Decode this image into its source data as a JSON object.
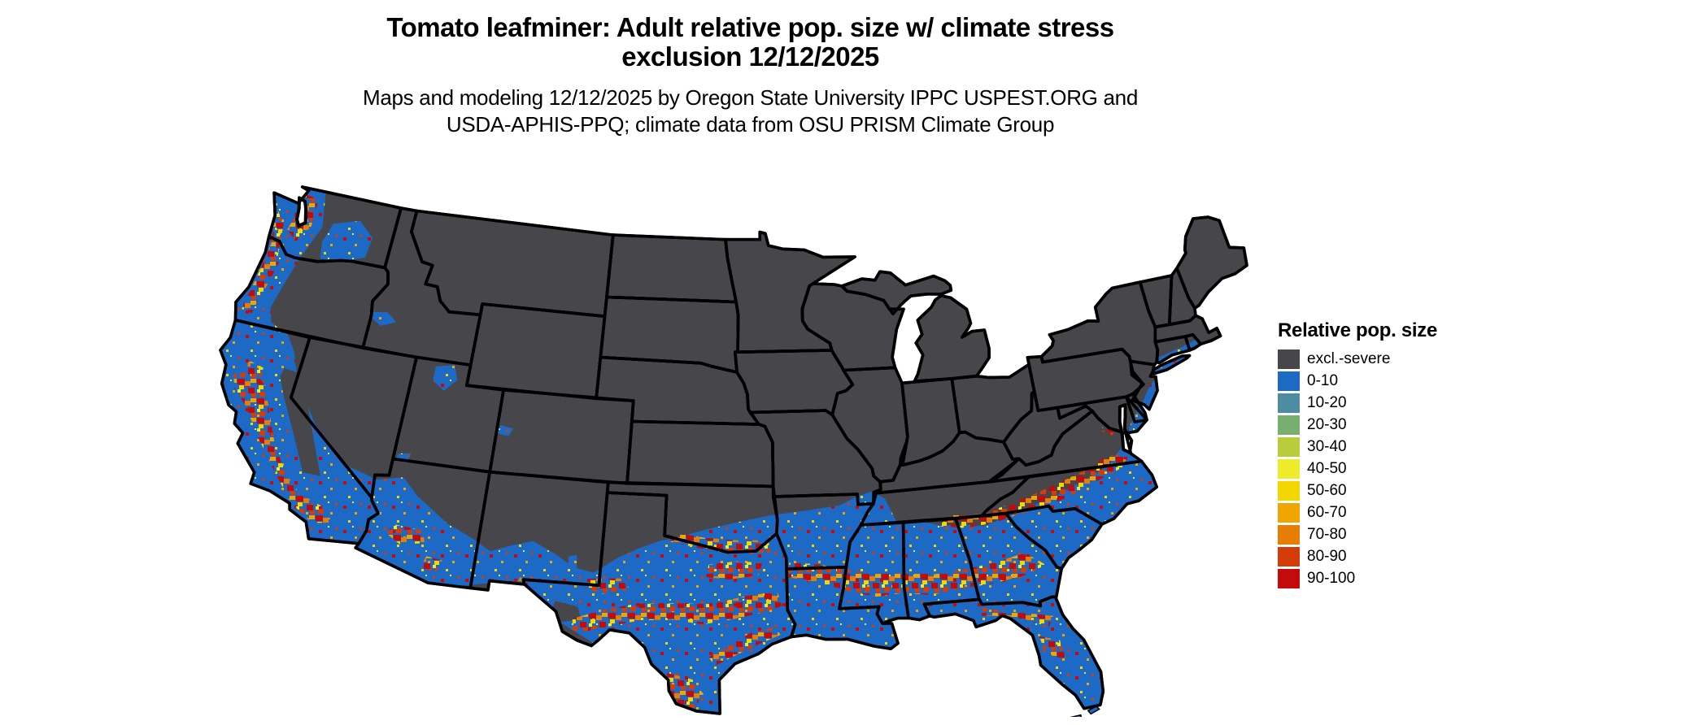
{
  "header": {
    "title_line1": "Tomato leafminer: Adult relative pop. size w/ climate stress",
    "title_line2": "exclusion 12/12/2025",
    "subtitle_line1": "Maps and modeling 12/12/2025 by Oregon State University IPPC USPEST.ORG and",
    "subtitle_line2": "USDA-APHIS-PPQ; climate data from OSU PRISM Climate Group"
  },
  "legend": {
    "title": "Relative pop. size",
    "items": [
      {
        "label": "excl.-severe",
        "color": "#47474B"
      },
      {
        "label": "0-10",
        "color": "#1C69C6"
      },
      {
        "label": "10-20",
        "color": "#4E8CA1"
      },
      {
        "label": "20-30",
        "color": "#78AF6E"
      },
      {
        "label": "30-40",
        "color": "#B9CD3C"
      },
      {
        "label": "40-50",
        "color": "#EEEB28"
      },
      {
        "label": "50-60",
        "color": "#F5D700"
      },
      {
        "label": "60-70",
        "color": "#F0A500"
      },
      {
        "label": "70-80",
        "color": "#E67D05"
      },
      {
        "label": "80-90",
        "color": "#D53C0A"
      },
      {
        "label": "90-100",
        "color": "#C40A0A"
      }
    ]
  },
  "map": {
    "state_border_color": "#000000",
    "water_background_color": "#FFFFFF",
    "zones": {
      "excluded": "excl.-severe (dark gray): northern tier, Midwest, Appalachians and interior mountain West",
      "suitable_low": "0-10 (blue): southern U.S. from southeast Virginia through the Gulf states and Texas, plus Pacific coast valleys, southwest deserts, Columbia Basin and Great Salt Lake area",
      "hotspots": "40-100 (yellow to red): speckled bands across south Texas, central Texas, Louisiana-Mississippi-Alabama-Georgia, Carolinas piedmont, north and central Florida, and California's Central Valley and coast"
    }
  }
}
